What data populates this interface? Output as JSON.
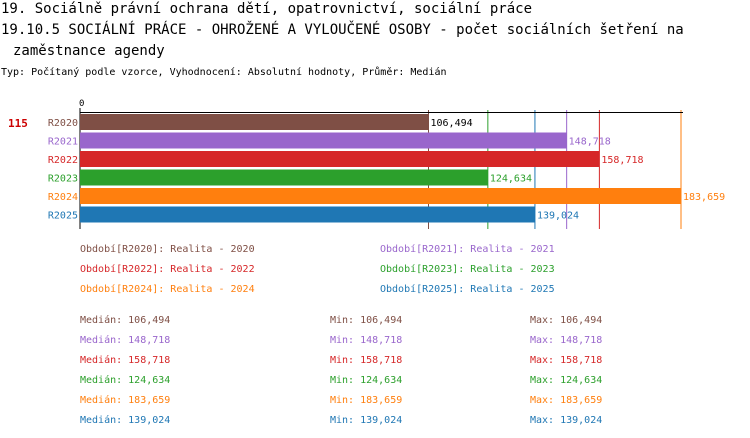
{
  "header": {
    "line1": "19. Sociálně právní ochrana dětí, opatrovnictví, sociální práce",
    "line2": "19.10.5 SOCIÁLNÍ PRÁCE - OHROŽENÉ A VYLOUČENÉ OSOBY - počet sociálních šetření na",
    "line3": "zaměstnance agendy",
    "subtitle": "Typ: Počítaný podle vzorce, Vyhodnocení: Absolutní hodnoty, Průměr: Medián"
  },
  "row_label": "115",
  "chart_data": {
    "type": "bar",
    "orientation": "horizontal",
    "x_axis_zero_label": "0",
    "categories": [
      "R2020",
      "R2021",
      "R2022",
      "R2023",
      "R2024",
      "R2025"
    ],
    "values": [
      106494,
      148718,
      158718,
      124634,
      183659,
      139024
    ],
    "value_labels": [
      "106,494",
      "148,718",
      "158,718",
      "124,634",
      "183,659",
      "139,024"
    ],
    "colors": [
      "#7f4f45",
      "#9966cc",
      "#d62728",
      "#2ca02c",
      "#ff7f0e",
      "#1f77b4"
    ],
    "xlim": [
      0,
      183659
    ]
  },
  "legend": [
    {
      "text": "Období[R2020]: Realita - 2020",
      "color": "#7f4f45"
    },
    {
      "text": "Období[R2021]: Realita - 2021",
      "color": "#9966cc"
    },
    {
      "text": "Období[R2022]: Realita - 2022",
      "color": "#d62728"
    },
    {
      "text": "Období[R2023]: Realita - 2023",
      "color": "#2ca02c"
    },
    {
      "text": "Období[R2024]: Realita - 2024",
      "color": "#ff7f0e"
    },
    {
      "text": "Období[R2025]: Realita - 2025",
      "color": "#1f77b4"
    }
  ],
  "stats": [
    {
      "median": "Medián: 106,494",
      "min": "Min: 106,494",
      "max": "Max: 106,494",
      "color": "#7f4f45"
    },
    {
      "median": "Medián: 148,718",
      "min": "Min: 148,718",
      "max": "Max: 148,718",
      "color": "#9966cc"
    },
    {
      "median": "Medián: 158,718",
      "min": "Min: 158,718",
      "max": "Max: 158,718",
      "color": "#d62728"
    },
    {
      "median": "Medián: 124,634",
      "min": "Min: 124,634",
      "max": "Max: 124,634",
      "color": "#2ca02c"
    },
    {
      "median": "Medián: 183,659",
      "min": "Min: 183,659",
      "max": "Max: 183,659",
      "color": "#ff7f0e"
    },
    {
      "median": "Medián: 139,024",
      "min": "Min: 139,024",
      "max": "Max: 139,024",
      "color": "#1f77b4"
    }
  ],
  "colors": {
    "row_label": "#cc0000",
    "axis": "#000000"
  }
}
